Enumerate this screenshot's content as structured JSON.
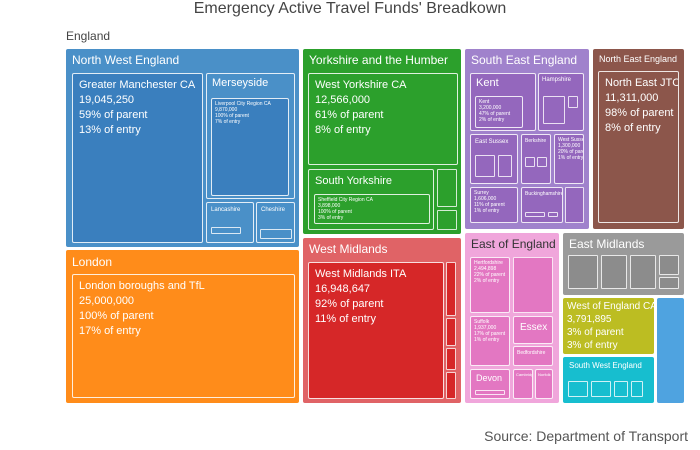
{
  "chart_data": {
    "type": "treemap",
    "title": "Emergency Active Travel Funds' Breadkown",
    "source": "Source: Department of Transport",
    "root": "England",
    "regions": [
      {
        "name": "North West England",
        "color": "#4a90c8",
        "children": [
          {
            "name": "Greater Manchester CA",
            "value": "19,045,250",
            "pct_parent": "59% of parent",
            "pct_entry": "13% of entry"
          },
          {
            "name": "Merseyside",
            "label_only": true,
            "children": [
              {
                "name": "Liverpool City Region CA",
                "value": "9,870,000",
                "pct_parent": "100% of parent",
                "pct_entry": "7% of entry"
              }
            ]
          },
          {
            "name": "Lancashire",
            "label_only": true
          },
          {
            "name": "Cheshire",
            "label_only": true
          }
        ]
      },
      {
        "name": "London",
        "color": "#ff8c1a",
        "children": [
          {
            "name": "London boroughs and TfL",
            "value": "25,000,000",
            "pct_parent": "100% of parent",
            "pct_entry": "17% of entry"
          }
        ]
      },
      {
        "name": "Yorkshire and the Humber",
        "color": "#2ca02c",
        "children": [
          {
            "name": "West Yorkshire CA",
            "value": "12,566,000",
            "pct_parent": "61% of parent",
            "pct_entry": "8% of entry"
          },
          {
            "name": "South Yorkshire",
            "label_only": true,
            "children": [
              {
                "name": "Sheffield City Region CA",
                "value": "3,898,000",
                "pct_parent": "100% of parent",
                "pct_entry": "3% of entry"
              }
            ]
          }
        ]
      },
      {
        "name": "West Midlands",
        "color": "#d62728",
        "children": [
          {
            "name": "West Midlands ITA",
            "value": "16,948,647",
            "pct_parent": "92% of parent",
            "pct_entry": "11% of entry"
          }
        ]
      },
      {
        "name": "South East England",
        "color": "#9467bd",
        "children": [
          {
            "name": "Kent",
            "label_only": true,
            "children": [
              {
                "name": "Kent",
                "value": "3,200,000",
                "pct_parent": "47% of parent",
                "pct_entry": "2% of entry"
              }
            ]
          },
          {
            "name": "Hampshire",
            "label_only": true
          },
          {
            "name": "East Sussex",
            "label_only": true
          },
          {
            "name": "Berkshire",
            "label_only": true
          },
          {
            "name": "West Sussex",
            "value": "1,300,000",
            "pct_parent": "20% of parent",
            "pct_entry": "1% of entry"
          },
          {
            "name": "Surrey",
            "value": "1,606,000",
            "pct_parent": "11% of parent",
            "pct_entry": "1% of entry"
          },
          {
            "name": "Buckinghamshire",
            "label_only": true
          }
        ]
      },
      {
        "name": "North East England",
        "color": "#8c564b",
        "children": [
          {
            "name": "North East JTC",
            "value": "11,311,000",
            "pct_parent": "98% of parent",
            "pct_entry": "8% of entry"
          }
        ]
      },
      {
        "name": "East of England",
        "color": "#e377c2",
        "children": [
          {
            "name": "Hertfordshire",
            "value": "2,494,898",
            "pct_parent": "22% of parent",
            "pct_entry": "2% of entry"
          },
          {
            "name": "Essex",
            "label_only": true
          },
          {
            "name": "Bedfordshire",
            "label_only": true
          },
          {
            "name": "Cambridgeshire",
            "label_only": true
          },
          {
            "name": "Suffolk",
            "value": "1,937,000",
            "pct_parent": "17% of parent",
            "pct_entry": "1% of entry"
          },
          {
            "name": "Norfolk",
            "label_only": true
          }
        ]
      },
      {
        "name": "East Midlands",
        "color": "#8c8c8c",
        "children": []
      },
      {
        "name": "West of England CA",
        "color": "#bcbd22",
        "value": "3,791,895",
        "pct_parent": "3% of parent",
        "pct_entry": "3% of entry"
      },
      {
        "name": "South West England",
        "color": "#17becf",
        "children": [
          {
            "name": "Devon",
            "label_only": true
          }
        ]
      }
    ]
  }
}
